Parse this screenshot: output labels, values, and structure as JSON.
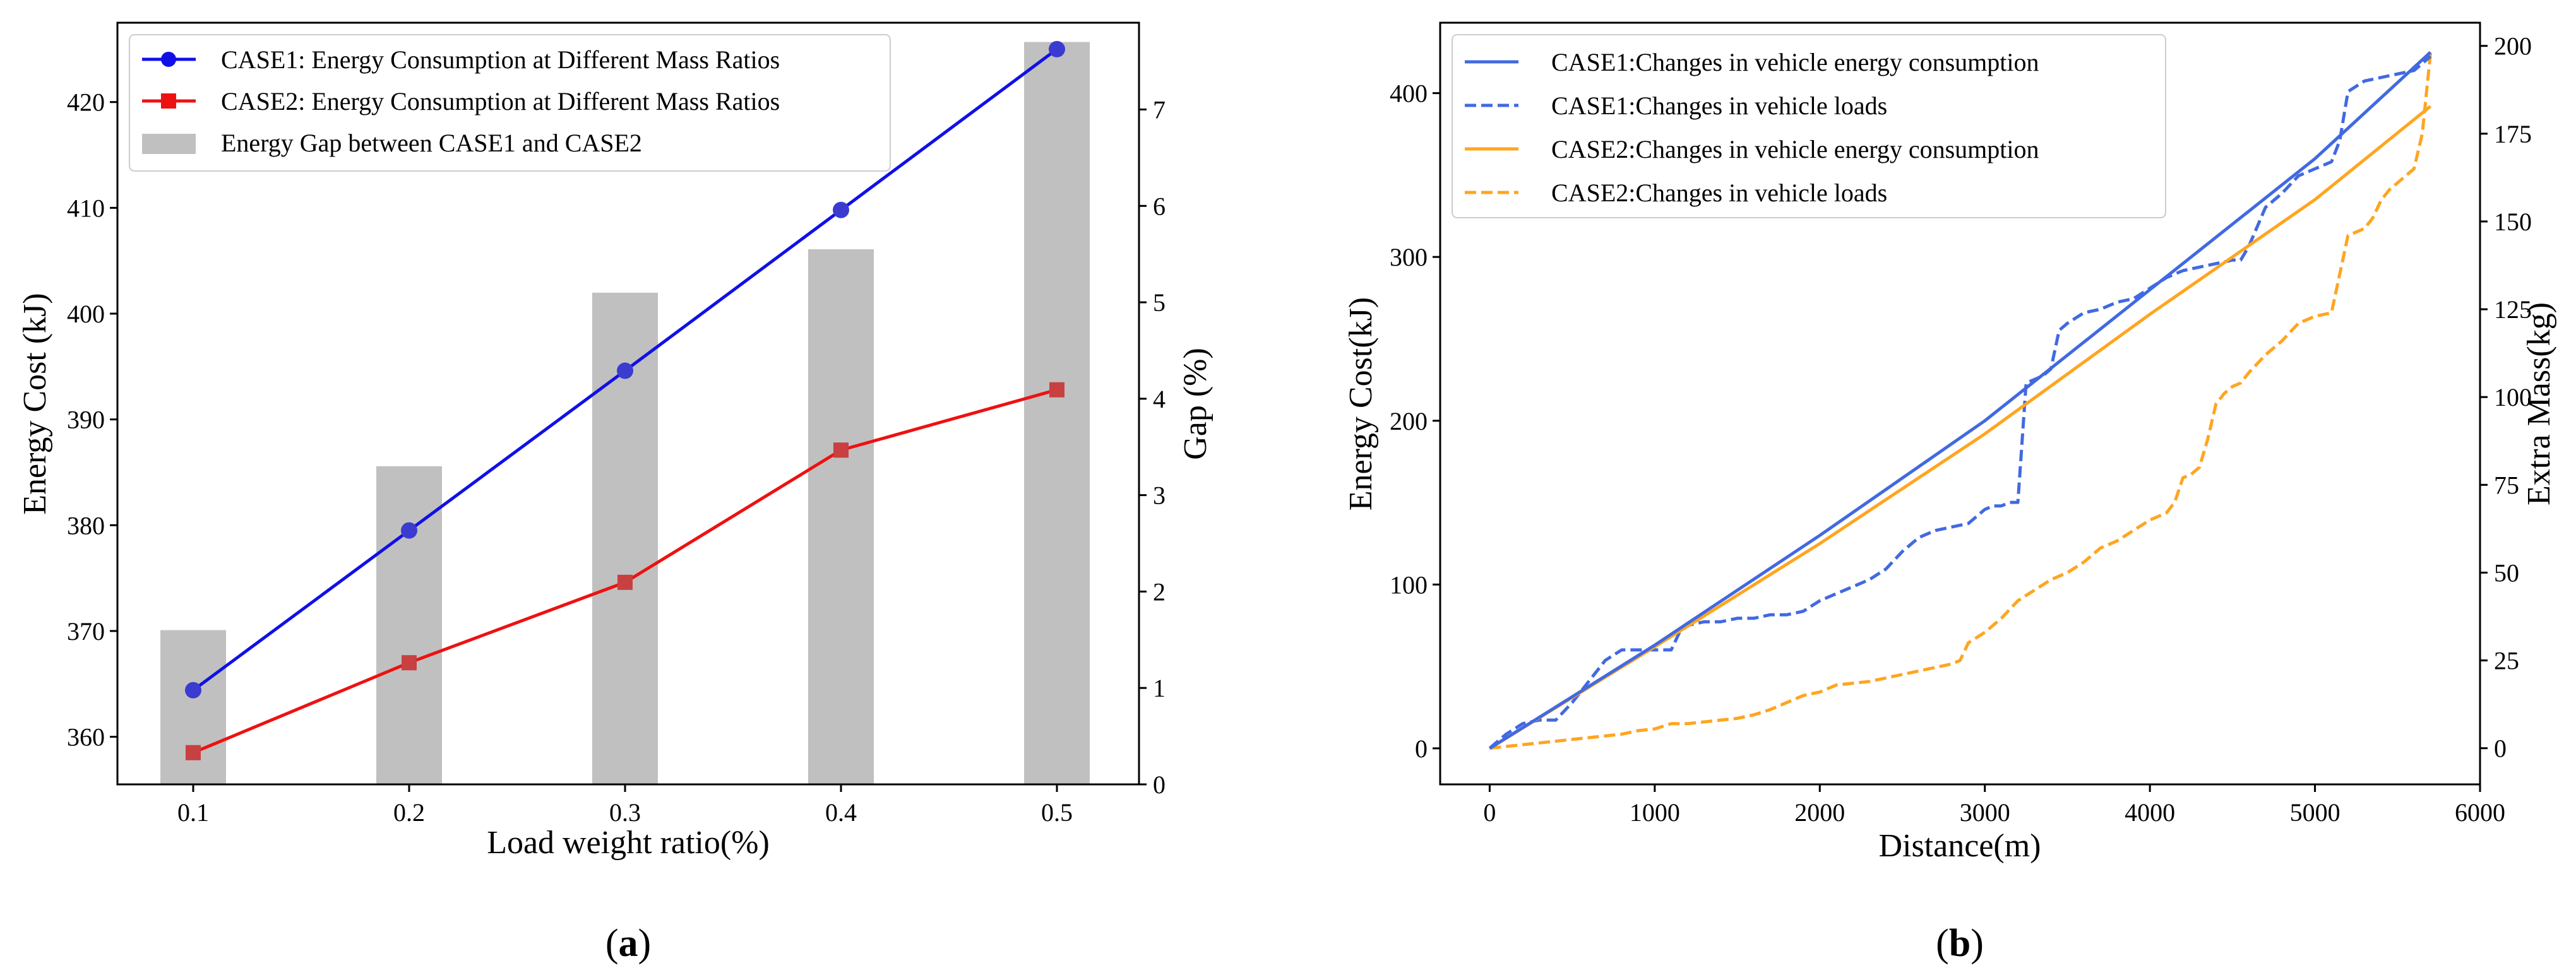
{
  "chart_data": [
    {
      "id": "a",
      "caption": "(a)",
      "caption_open": "(",
      "caption_letter": "a",
      "caption_close": ")",
      "type": "bar+line",
      "xlabel": "Load weight ratio(%)",
      "ylabel": "Energy Cost (kJ)",
      "ylabel_right": "Gap (%)",
      "categories": [
        "0.1",
        "0.2",
        "0.3",
        "0.4",
        "0.5"
      ],
      "ylim": [
        355.5,
        427.5
      ],
      "ylim_right": [
        0,
        7.9
      ],
      "yticks": [
        360,
        370,
        380,
        390,
        400,
        410,
        420
      ],
      "yticks_right": [
        0,
        1,
        2,
        3,
        4,
        5,
        6,
        7
      ],
      "series": [
        {
          "name": "CASE1: Energy Consumption at Different Mass Ratios",
          "kind": "line",
          "marker": "circle",
          "color": "#1010e6",
          "marker_color": "#3b3bd0",
          "values": [
            364.4,
            379.5,
            394.6,
            409.8,
            425.0
          ]
        },
        {
          "name": "CASE2: Energy Consumption at Different Mass Ratios",
          "kind": "line",
          "marker": "square",
          "color": "#ee1111",
          "marker_color": "#c84040",
          "values": [
            358.5,
            367.0,
            374.6,
            387.1,
            392.8
          ]
        }
      ],
      "bars": {
        "name": "Energy Gap between CASE1 and CASE2",
        "color": "#c0c0c0",
        "values": [
          1.6,
          3.3,
          5.1,
          5.55,
          7.7
        ]
      }
    },
    {
      "id": "b",
      "caption": "(b)",
      "caption_open": "(",
      "caption_letter": "b",
      "caption_close": ")",
      "type": "line",
      "xlabel": "Distance(m)",
      "ylabel": "Energy Cost(kJ)",
      "ylabel_right": "Extra Mass(kg)",
      "xlim": [
        -300,
        6000
      ],
      "ylim": [
        -22,
        443
      ],
      "ylim_right": [
        -10.3,
        206.6
      ],
      "xticks": [
        0,
        1000,
        2000,
        3000,
        4000,
        5000,
        6000
      ],
      "yticks": [
        0,
        100,
        200,
        300,
        400
      ],
      "yticks_right": [
        0,
        25,
        50,
        75,
        100,
        125,
        150,
        175,
        200
      ],
      "series": [
        {
          "name": "CASE1:Changes in vehicle energy consumption",
          "axis": "left",
          "style": "solid",
          "color": "#4169e1",
          "x": [
            0,
            1000,
            2000,
            3000,
            4000,
            5000,
            5700
          ],
          "y": [
            0,
            63,
            130,
            200,
            280,
            360,
            425
          ]
        },
        {
          "name": "CASE1:Changes in vehicle loads",
          "axis": "right",
          "style": "dashed",
          "color": "#4169e1",
          "x": [
            0,
            100,
            200,
            300,
            400,
            500,
            600,
            700,
            800,
            900,
            1000,
            1050,
            1100,
            1150,
            1200,
            1300,
            1400,
            1500,
            1600,
            1700,
            1800,
            1900,
            2000,
            2100,
            2200,
            2300,
            2400,
            2500,
            2600,
            2700,
            2800,
            2900,
            3000,
            3050,
            3100,
            3150,
            3200,
            3250,
            3300,
            3350,
            3400,
            3450,
            3500,
            3600,
            3700,
            3800,
            3900,
            4000,
            4100,
            4200,
            4300,
            4400,
            4500,
            4550,
            4600,
            4700,
            4800,
            4900,
            5000,
            5100,
            5150,
            5200,
            5300,
            5400,
            5500,
            5600,
            5700
          ],
          "y": [
            0,
            4,
            7,
            8,
            8,
            13,
            19,
            25,
            28,
            28,
            28,
            28,
            28,
            33,
            35,
            36,
            36,
            37,
            37,
            38,
            38,
            39,
            42,
            44,
            46,
            48,
            51,
            56,
            60,
            62,
            63,
            64,
            68,
            69,
            69,
            70,
            70,
            104,
            105,
            106,
            108,
            119,
            121,
            124,
            125,
            127,
            128,
            131,
            134,
            136,
            137,
            138,
            139,
            139,
            143,
            154,
            158,
            163,
            165,
            167,
            173,
            187,
            190,
            191,
            192,
            193,
            197
          ]
        },
        {
          "name": "CASE2:Changes in vehicle energy consumption",
          "axis": "left",
          "style": "solid",
          "color": "#ffa51f",
          "x": [
            0,
            1000,
            2000,
            3000,
            4000,
            5000,
            5700
          ],
          "y": [
            0,
            62,
            125,
            192,
            265,
            335,
            392
          ]
        },
        {
          "name": "CASE2:Changes in vehicle loads",
          "axis": "right",
          "style": "dashed",
          "color": "#ffa51f",
          "x": [
            0,
            100,
            200,
            300,
            400,
            500,
            600,
            700,
            800,
            900,
            1000,
            1100,
            1200,
            1300,
            1400,
            1500,
            1600,
            1700,
            1800,
            1900,
            2000,
            2100,
            2200,
            2300,
            2400,
            2500,
            2600,
            2700,
            2800,
            2850,
            2900,
            3000,
            3100,
            3200,
            3300,
            3400,
            3500,
            3600,
            3700,
            3800,
            3900,
            4000,
            4100,
            4150,
            4200,
            4250,
            4300,
            4350,
            4400,
            4450,
            4500,
            4550,
            4600,
            4700,
            4800,
            4900,
            5000,
            5100,
            5150,
            5200,
            5250,
            5300,
            5350,
            5400,
            5450,
            5500,
            5600,
            5650,
            5700
          ],
          "y": [
            0,
            0.5,
            1,
            1.5,
            2,
            2.5,
            3,
            3.5,
            4,
            5,
            5.5,
            7,
            7,
            7.5,
            8,
            8.5,
            9.5,
            11,
            13,
            15,
            16,
            18,
            18.5,
            19,
            20,
            21,
            22,
            23,
            24,
            25,
            30,
            33,
            37,
            42,
            45,
            48,
            50,
            53,
            57,
            59,
            62,
            65,
            67,
            70,
            77,
            78,
            80,
            88,
            98,
            101,
            103,
            104,
            107,
            112,
            116,
            121,
            123,
            124,
            135,
            146,
            147,
            148,
            151,
            156,
            159,
            161,
            165,
            175,
            198
          ]
        }
      ]
    }
  ]
}
